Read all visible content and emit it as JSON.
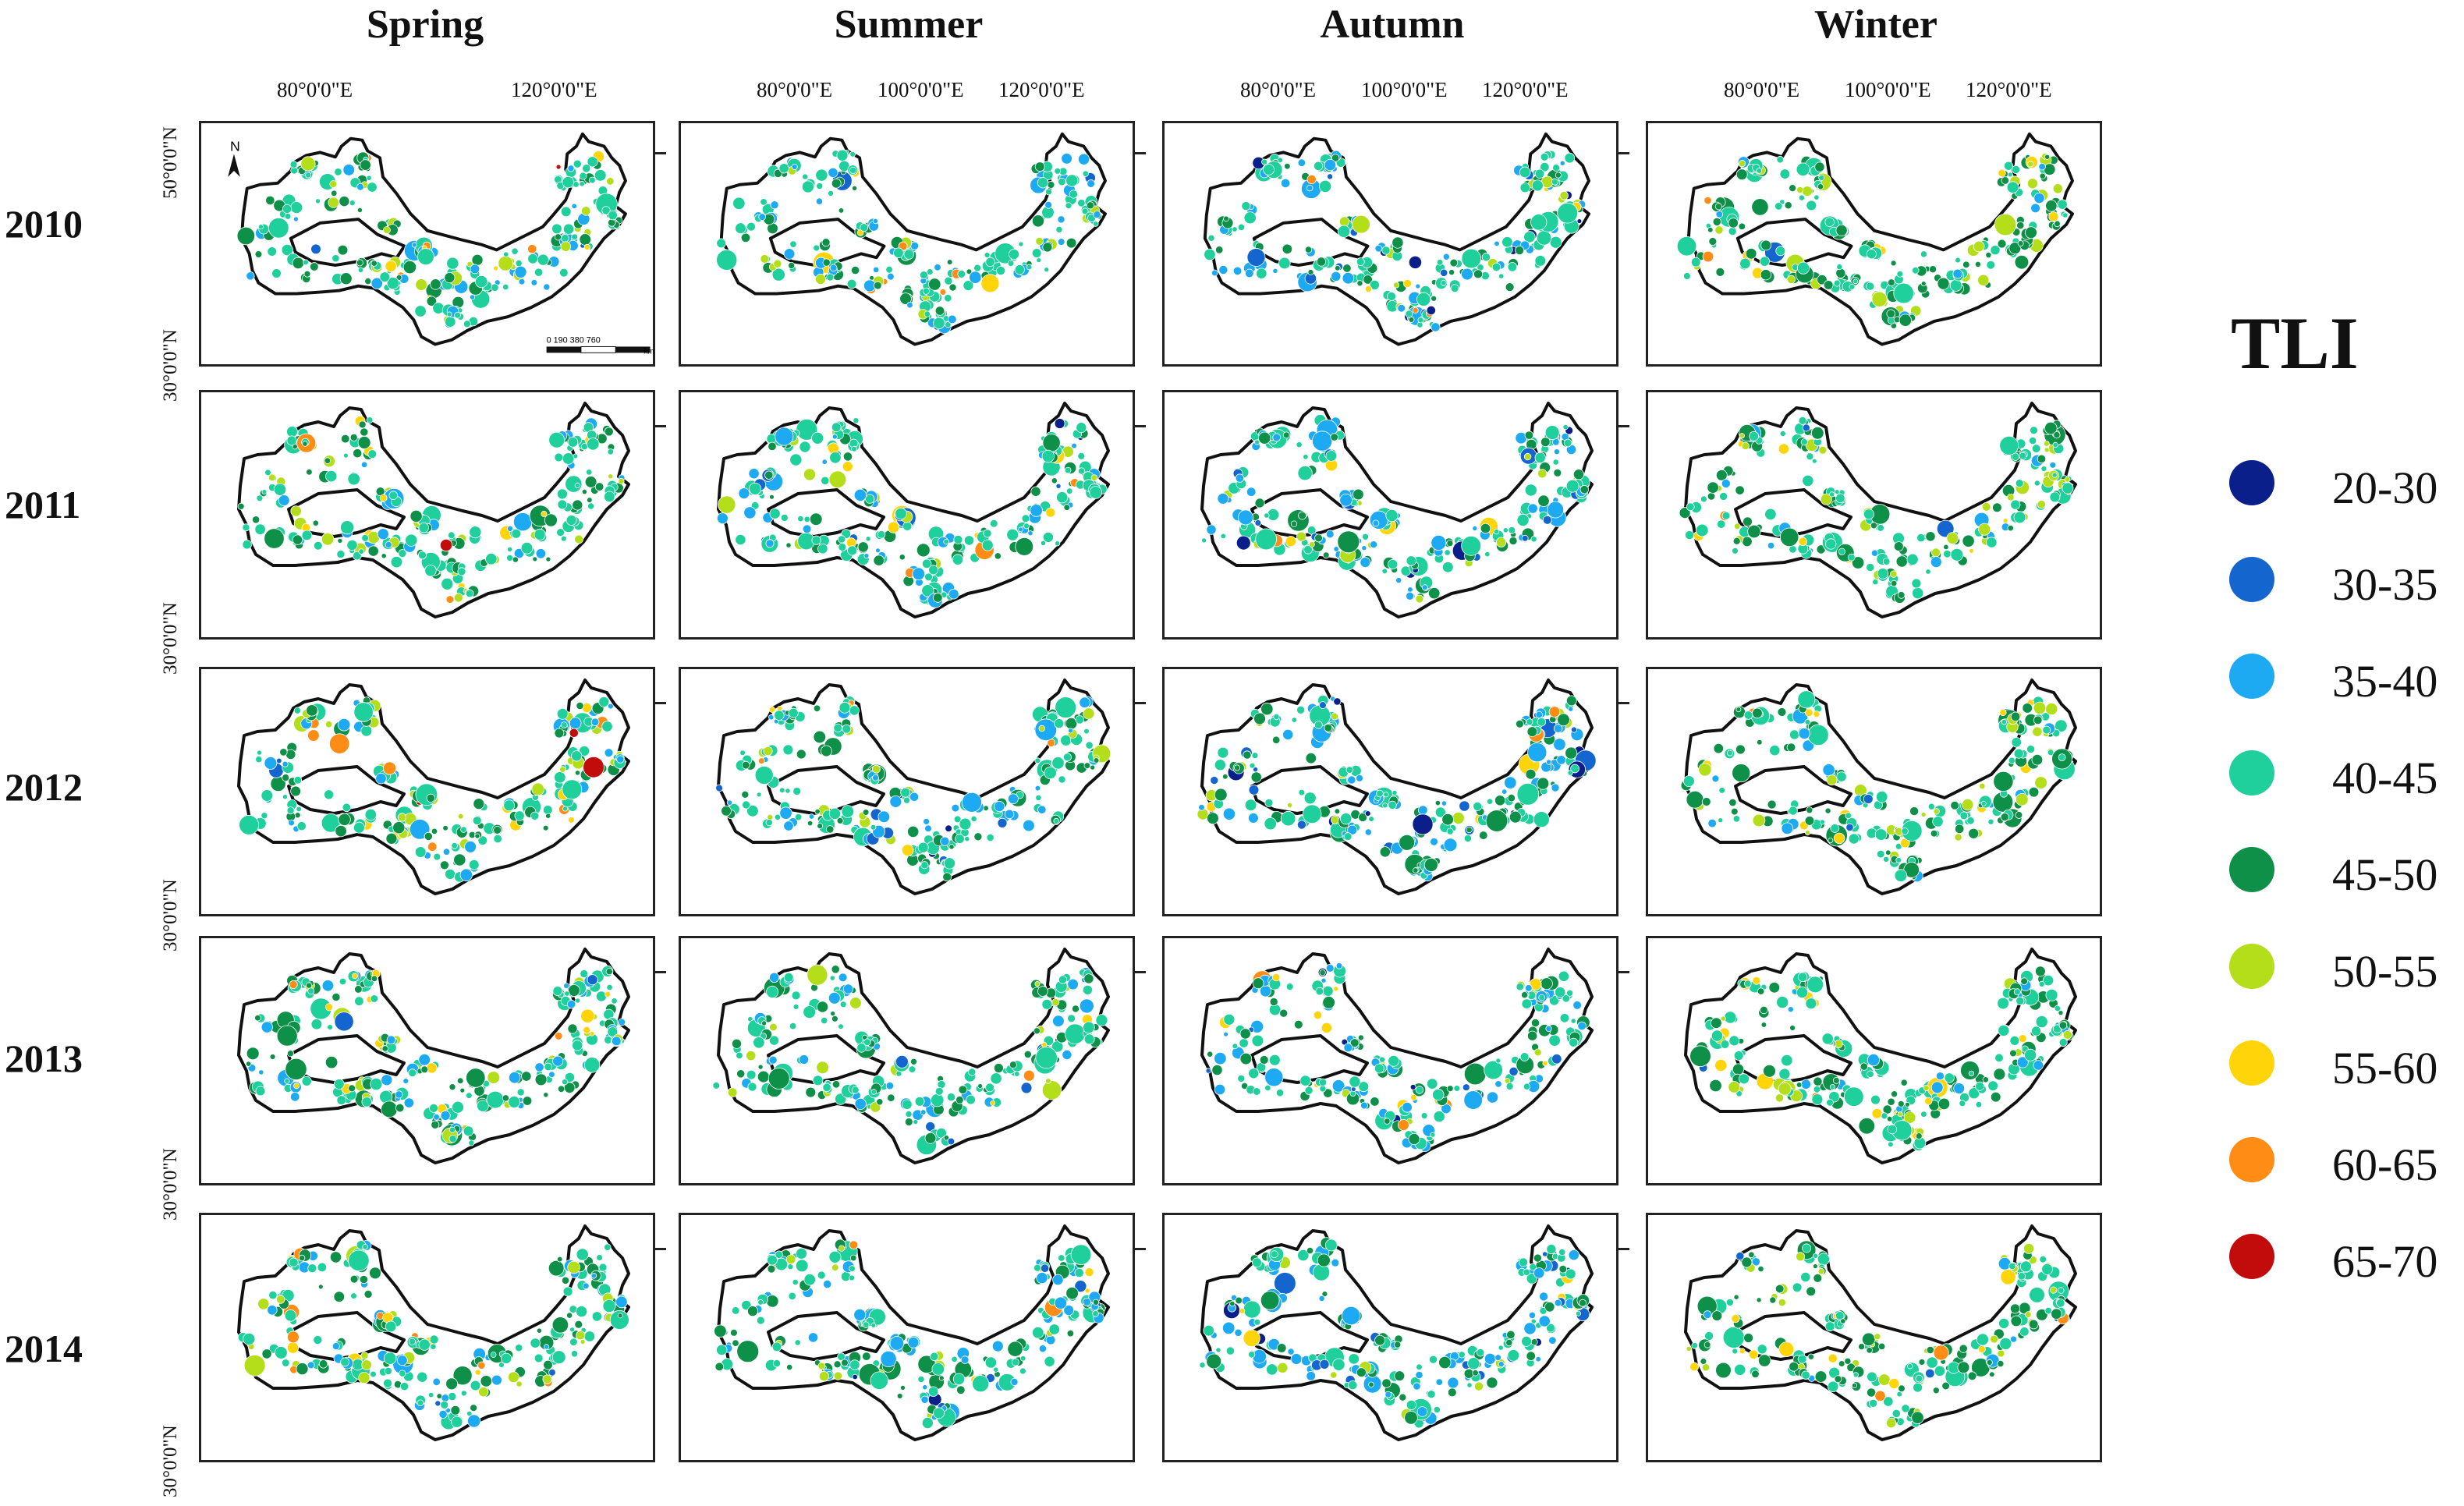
{
  "seasons": [
    "Spring",
    "Summer",
    "Autumn",
    "Winter"
  ],
  "years": [
    "2010",
    "2011",
    "2012",
    "2013",
    "2014"
  ],
  "lon_labels": {
    "first": [
      "80°0'0\"E",
      "120°0'0\"E"
    ],
    "others": [
      "80°0'0\"E",
      "100°0'0\"E",
      "120°0'0\"E"
    ]
  },
  "lat_labels": {
    "north": "50°0'0\"N",
    "south": "30°0'0\"N"
  },
  "north_arrow": "N",
  "scale_bar": {
    "ticks": "0  190 380       760",
    "unit": "km"
  },
  "legend": {
    "title": "TLI",
    "items": [
      {
        "label": "20-30",
        "color": "#0b1f8a"
      },
      {
        "label": "30-35",
        "color": "#1565cf"
      },
      {
        "label": "35-40",
        "color": "#1eaaf2"
      },
      {
        "label": "40-45",
        "color": "#1fcf9c"
      },
      {
        "label": "45-50",
        "color": "#0e9048"
      },
      {
        "label": "50-55",
        "color": "#b4de1a"
      },
      {
        "label": "55-60",
        "color": "#ffd50a"
      },
      {
        "label": "60-65",
        "color": "#ff8c14"
      },
      {
        "label": "65-70",
        "color": "#c20c0c"
      }
    ]
  }
}
